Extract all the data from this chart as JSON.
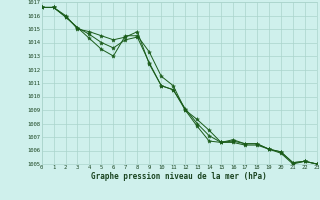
{
  "x": [
    0,
    1,
    2,
    3,
    4,
    5,
    6,
    7,
    8,
    9,
    10,
    11,
    12,
    13,
    14,
    15,
    16,
    17,
    18,
    19,
    20,
    21,
    22,
    23
  ],
  "line1": [
    1016.6,
    1016.6,
    1016.0,
    1015.0,
    1014.8,
    1014.5,
    1014.2,
    1014.4,
    1014.8,
    1012.4,
    1010.8,
    1010.5,
    1009.0,
    1008.3,
    1007.5,
    1006.6,
    1006.7,
    1006.5,
    1006.5,
    1006.1,
    1005.9,
    1005.1,
    1005.2,
    1005.0
  ],
  "line2": [
    1016.6,
    1016.6,
    1015.9,
    1015.1,
    1014.6,
    1014.0,
    1013.6,
    1014.2,
    1014.4,
    1012.5,
    1010.8,
    1010.5,
    1009.1,
    1008.0,
    1007.1,
    1006.6,
    1006.8,
    1006.5,
    1006.5,
    1006.1,
    1005.9,
    1005.1,
    1005.2,
    1005.0
  ],
  "line3": [
    1016.6,
    1016.6,
    1015.9,
    1015.1,
    1014.3,
    1013.5,
    1013.0,
    1014.5,
    1014.5,
    1013.3,
    1011.5,
    1010.8,
    1009.0,
    1007.8,
    1006.7,
    1006.6,
    1006.6,
    1006.4,
    1006.4,
    1006.1,
    1005.8,
    1005.0,
    1005.2,
    1005.0
  ],
  "bg_color": "#cff0ec",
  "grid_color": "#aad4cc",
  "line_color": "#1a5c1a",
  "marker_color": "#1a5c1a",
  "xlabel": "Graphe pression niveau de la mer (hPa)",
  "ylim_min": 1005,
  "ylim_max": 1017,
  "xlim_min": 0,
  "xlim_max": 23
}
